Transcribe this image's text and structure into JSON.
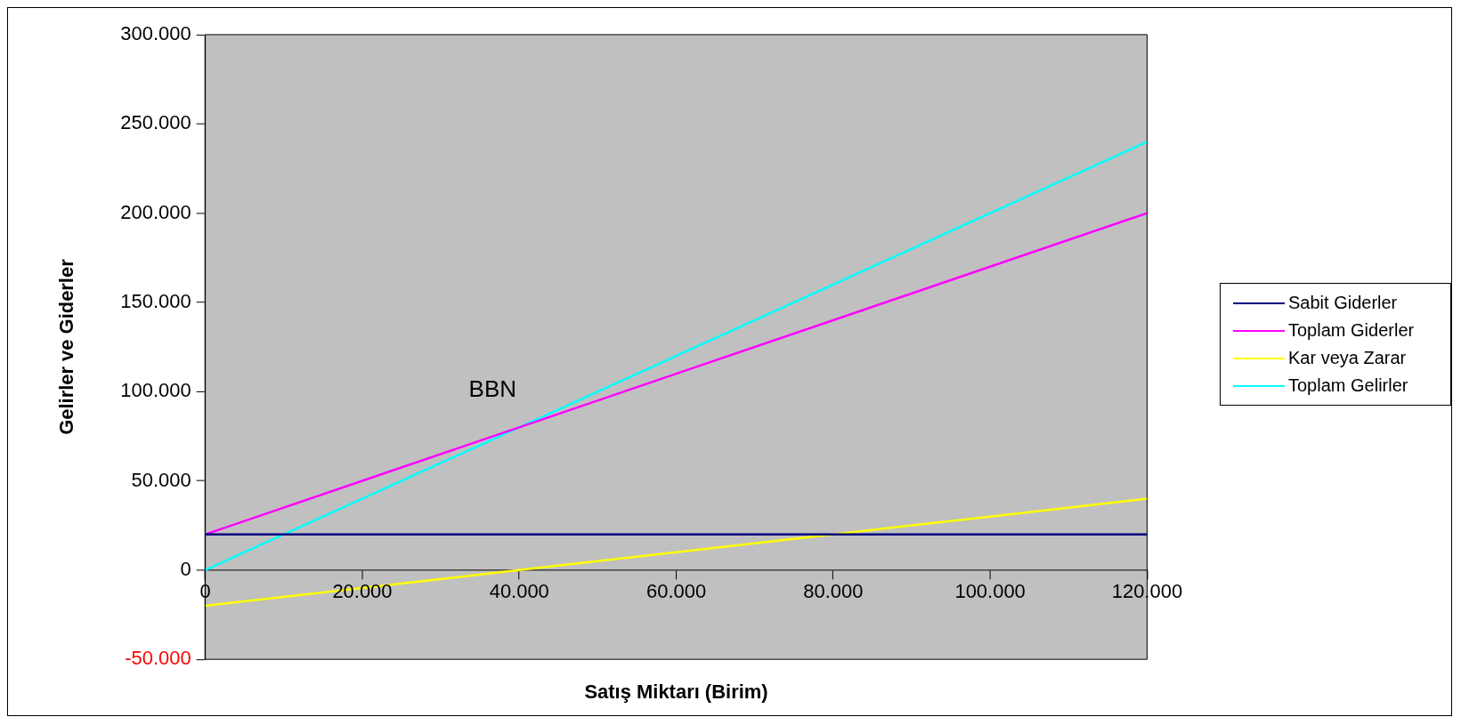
{
  "chart_data": {
    "type": "line",
    "xlabel": "Satış Miktarı (Birim)",
    "ylabel": "Gelirler ve Giderler",
    "x": [
      0,
      20000,
      40000,
      60000,
      80000,
      100000,
      120000
    ],
    "series": [
      {
        "name": "Sabit Giderler",
        "color": "#000080",
        "values": [
          20000,
          20000,
          20000,
          20000,
          20000,
          20000,
          20000
        ]
      },
      {
        "name": "Toplam Giderler",
        "color": "#ff00ff",
        "values": [
          20000,
          50000,
          80000,
          110000,
          140000,
          170000,
          200000
        ]
      },
      {
        "name": "Kar veya Zarar",
        "color": "#ffff00",
        "values": [
          -20000,
          -10000,
          0,
          10000,
          20000,
          30000,
          40000
        ]
      },
      {
        "name": "Toplam Gelirler",
        "color": "#00ffff",
        "values": [
          0,
          40000,
          80000,
          120000,
          160000,
          200000,
          240000
        ]
      }
    ],
    "xlim": [
      0,
      120000
    ],
    "xticks": [
      0,
      {
        "value": 20000,
        "label": "20.000"
      },
      {
        "value": 40000,
        "label": "40.000"
      },
      {
        "value": 60000,
        "label": "60.000"
      },
      {
        "value": 80000,
        "label": "80.000"
      },
      {
        "value": 100000,
        "label": "100.000"
      },
      {
        "value": 120000,
        "label": "120.000"
      }
    ],
    "ylim": [
      -50000,
      300000
    ],
    "yticks": [
      {
        "value": -50000,
        "label": "-50.000"
      },
      0,
      {
        "value": 50000,
        "label": "50.000"
      },
      {
        "value": 100000,
        "label": "100.000"
      },
      {
        "value": 150000,
        "label": "150.000"
      },
      {
        "value": 200000,
        "label": "200.000"
      },
      {
        "value": 250000,
        "label": "250.000"
      },
      {
        "value": 300000,
        "label": "300.000"
      }
    ],
    "annotations": [
      {
        "text": "BBN",
        "x": 40000,
        "y": 80000
      }
    ],
    "legend": "right",
    "grid": false,
    "marker": "none",
    "line_style": "solid"
  }
}
